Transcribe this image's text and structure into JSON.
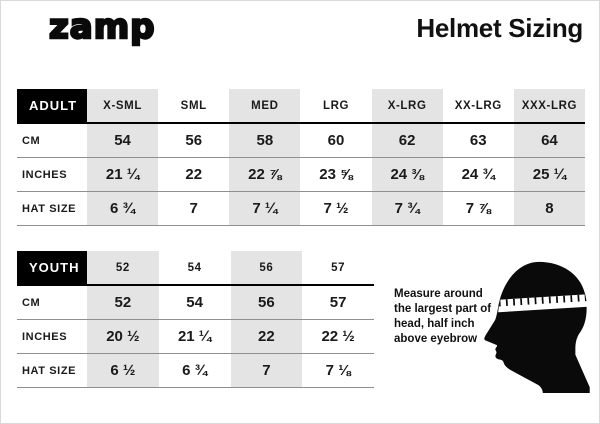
{
  "header": {
    "logo_text": "zamp",
    "title": "Helmet Sizing"
  },
  "adult_table": {
    "header_label": "ADULT",
    "columns": [
      "X-SML",
      "SML",
      "MED",
      "LRG",
      "X-LRG",
      "XX-LRG",
      "XXX-LRG"
    ],
    "rows": [
      {
        "label": "CM",
        "values": [
          "54",
          "56",
          "58",
          "60",
          "62",
          "63",
          "64"
        ]
      },
      {
        "label": "INCHES",
        "values": [
          "21 ¼",
          "22",
          "22 ⅞",
          "23 ⅝",
          "24 ⅜",
          "24 ¾",
          "25 ¼"
        ]
      },
      {
        "label": "HAT SIZE",
        "values": [
          "6 ¾",
          "7",
          "7 ¼",
          "7 ½",
          "7 ¾",
          "7 ⅞",
          "8"
        ]
      }
    ]
  },
  "youth_table": {
    "header_label": "YOUTH",
    "columns": [
      "52",
      "54",
      "56",
      "57"
    ],
    "rows": [
      {
        "label": "CM",
        "values": [
          "52",
          "54",
          "56",
          "57"
        ]
      },
      {
        "label": "INCHES",
        "values": [
          "20 ½",
          "21 ¼",
          "22",
          "22 ½"
        ]
      },
      {
        "label": "HAT SIZE",
        "values": [
          "6 ½",
          "6 ¾",
          "7",
          "7 ⅛"
        ]
      }
    ]
  },
  "note": {
    "text": "Measure around the largest part of head, half inch above eyebrow"
  },
  "colors": {
    "stripe": "#e4e4e4",
    "header_bg": "#000000",
    "row_line": "#8f8f8f"
  }
}
